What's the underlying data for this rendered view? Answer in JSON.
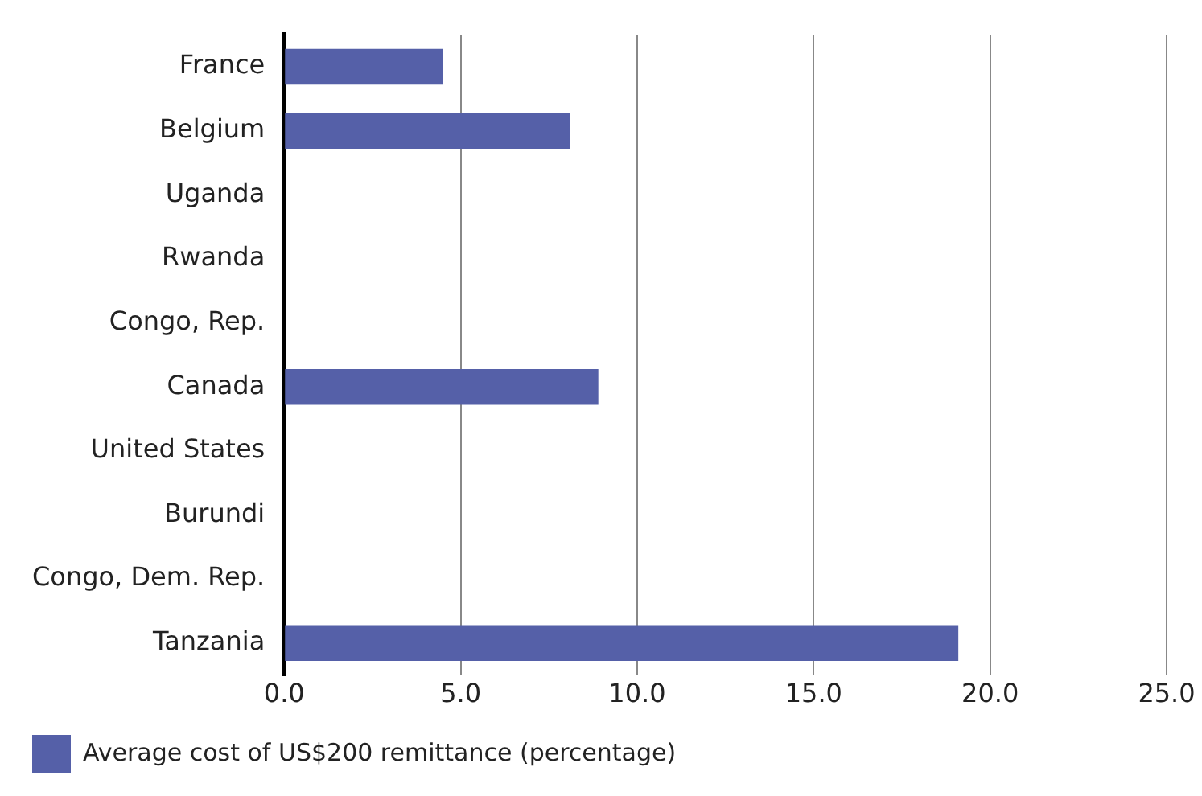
{
  "chart_data": {
    "type": "bar",
    "orientation": "horizontal",
    "categories": [
      "France",
      "Belgium",
      "Uganda",
      "Rwanda",
      "Congo, Rep.",
      "Canada",
      "United States",
      "Burundi",
      "Congo, Dem. Rep.",
      "Tanzania"
    ],
    "series": [
      {
        "name": "Average cost of US$200 remittance (percentage)",
        "color": "#5560a8",
        "values": [
          4.5,
          8.1,
          null,
          null,
          null,
          8.9,
          null,
          null,
          null,
          19.1
        ]
      }
    ],
    "xlim": [
      0,
      25
    ],
    "xticks": [
      {
        "value": 0,
        "label": "0.0"
      },
      {
        "value": 5,
        "label": "5.0"
      },
      {
        "value": 10,
        "label": "10.0"
      },
      {
        "value": 15,
        "label": "15.0"
      },
      {
        "value": 20,
        "label": "20.0"
      },
      {
        "value": 25,
        "label": "25.0"
      }
    ],
    "grid": "x",
    "legend": "bottom left"
  }
}
